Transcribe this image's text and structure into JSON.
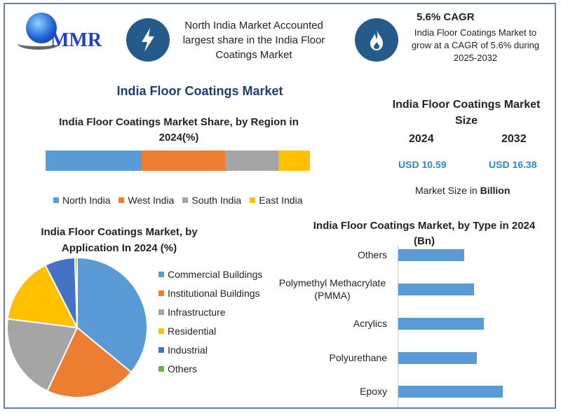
{
  "logo": {
    "text": "MMR"
  },
  "highlights": [
    {
      "icon": "lightning-icon",
      "text": "North India Market Accounted largest share in the India Floor Coatings Market"
    },
    {
      "icon": "flame-icon",
      "title": "5.6% CAGR",
      "text": "India Floor Coatings Market to grow at a CAGR of 5.6% during 2025-2032"
    }
  ],
  "main_title": "India Floor Coatings Market",
  "market_size": {
    "title": "India Floor Coatings Market Size",
    "years": [
      "2024",
      "2032"
    ],
    "values": [
      "USD 10.59",
      "USD 16.38"
    ],
    "note_prefix": "Market Size in ",
    "note_bold": "Billion"
  },
  "colors": {
    "blue": "#5b9bd5",
    "orange": "#ed7d31",
    "gray": "#a5a5a5",
    "yellow": "#ffc000",
    "darkblue": "#4472c4",
    "green": "#70ad47",
    "accent": "#245b8a",
    "title": "#1f3b70"
  },
  "chart_data": [
    {
      "type": "bar",
      "orientation": "stacked-horizontal",
      "title": "India Floor Coatings Market Share, by Region in 2024(%)",
      "categories": [
        "North India",
        "West India",
        "South India",
        "East India"
      ],
      "values": [
        36,
        32,
        20,
        12
      ],
      "legend": "bottom"
    },
    {
      "type": "pie",
      "title": "India Floor Coatings Market, by Application In 2024 (%)",
      "categories": [
        "Commercial Buildings",
        "Institutional Buildings",
        "Infrastructure",
        "Residential",
        "Industrial",
        "Others"
      ],
      "values": [
        36,
        21,
        20,
        15.5,
        7,
        0.5
      ],
      "legend": "right"
    },
    {
      "type": "bar",
      "orientation": "horizontal",
      "title": "India Floor Coatings Market, by Type in 2024 (Bn)",
      "categories": [
        "Others",
        "Polymethyl Methacrylate (PMMA)",
        "Acrylics",
        "Polyurethane",
        "Epoxy"
      ],
      "values": [
        0.94,
        1.08,
        1.22,
        1.12,
        1.49
      ]
    }
  ]
}
